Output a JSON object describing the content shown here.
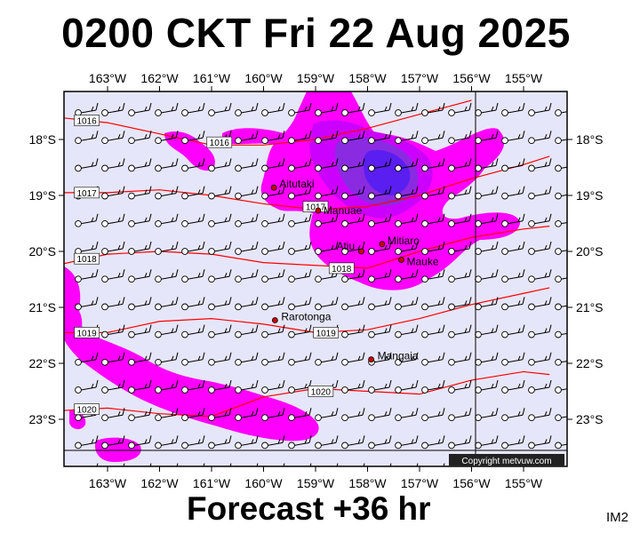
{
  "header": {
    "title": "0200 CKT Fri 22 Aug 2025"
  },
  "footer": {
    "forecast": "Forecast +36 hr",
    "product_code": "IM2"
  },
  "map": {
    "copyright": "Copyright metvuw.com",
    "lon_labels": [
      "163°W",
      "162°W",
      "161°W",
      "160°W",
      "159°W",
      "158°W",
      "157°W",
      "156°W",
      "155°W"
    ],
    "lat_labels": [
      "18°S",
      "19°S",
      "20°S",
      "21°S",
      "22°S",
      "23°S"
    ],
    "places": [
      {
        "name": "Aitutaki",
        "lon": -159.8,
        "lat": -18.86
      },
      {
        "name": "Manuae",
        "lon": -158.95,
        "lat": -19.27
      },
      {
        "name": "Atiu",
        "lon": -158.12,
        "lat": -20.0
      },
      {
        "name": "Mitiaro",
        "lon": -157.72,
        "lat": -19.87
      },
      {
        "name": "Mauke",
        "lon": -157.35,
        "lat": -20.15
      },
      {
        "name": "Rarotonga",
        "lon": -159.78,
        "lat": -21.23
      },
      {
        "name": "Mangaia",
        "lon": -157.93,
        "lat": -21.93
      }
    ],
    "isobars": [
      {
        "label": "1016",
        "points": [
          [
            -164,
            -17.6
          ],
          [
            -163,
            -17.7
          ],
          [
            -162,
            -17.9
          ],
          [
            -161,
            -18.1
          ],
          [
            -160,
            -18.1
          ],
          [
            -159,
            -18.0
          ],
          [
            -158,
            -17.8
          ],
          [
            -157,
            -17.55
          ],
          [
            -156,
            -17.3
          ]
        ]
      },
      {
        "label": "1017",
        "points": [
          [
            -164,
            -18.95
          ],
          [
            -163,
            -18.95
          ],
          [
            -162,
            -18.9
          ],
          [
            -161,
            -19.0
          ],
          [
            -160,
            -19.15
          ],
          [
            -159,
            -19.25
          ],
          [
            -158,
            -19.2
          ],
          [
            -157,
            -19.0
          ],
          [
            -156,
            -18.7
          ],
          [
            -155,
            -18.45
          ],
          [
            -154.5,
            -18.3
          ]
        ]
      },
      {
        "label": "1018",
        "points": [
          [
            -164,
            -20.25
          ],
          [
            -163,
            -20.05
          ],
          [
            -162,
            -20.0
          ],
          [
            -161,
            -20.05
          ],
          [
            -160,
            -20.2
          ],
          [
            -159,
            -20.25
          ],
          [
            -158,
            -20.3
          ],
          [
            -157,
            -20.0
          ],
          [
            -156,
            -19.75
          ],
          [
            -155,
            -19.6
          ],
          [
            -154.5,
            -19.55
          ]
        ]
      },
      {
        "label": "1019",
        "points": [
          [
            -164,
            -21.45
          ],
          [
            -163,
            -21.45
          ],
          [
            -162,
            -21.25
          ],
          [
            -161,
            -21.2
          ],
          [
            -160,
            -21.3
          ],
          [
            -159,
            -21.45
          ],
          [
            -158,
            -21.4
          ],
          [
            -157,
            -21.2
          ],
          [
            -156,
            -20.95
          ],
          [
            -155,
            -20.75
          ],
          [
            -154.5,
            -20.65
          ]
        ]
      },
      {
        "label": "1020",
        "points": [
          [
            -164,
            -22.85
          ],
          [
            -163,
            -22.8
          ],
          [
            -162,
            -22.9
          ],
          [
            -161,
            -22.95
          ],
          [
            -160,
            -22.6
          ],
          [
            -159,
            -22.45
          ],
          [
            -158,
            -22.5
          ],
          [
            -157,
            -22.55
          ],
          [
            -156,
            -22.3
          ],
          [
            -155,
            -22.15
          ],
          [
            -154.5,
            -22.2
          ]
        ]
      }
    ],
    "colors": {
      "background": "#e6e6fa",
      "rain_light": "#ff00ff",
      "rain_mid": "#cc00ff",
      "rain_heavy": "#8a2be2",
      "rain_core": "#5a1ef0",
      "isobar": "#ff0000",
      "place_dot": "#cc0000"
    }
  }
}
